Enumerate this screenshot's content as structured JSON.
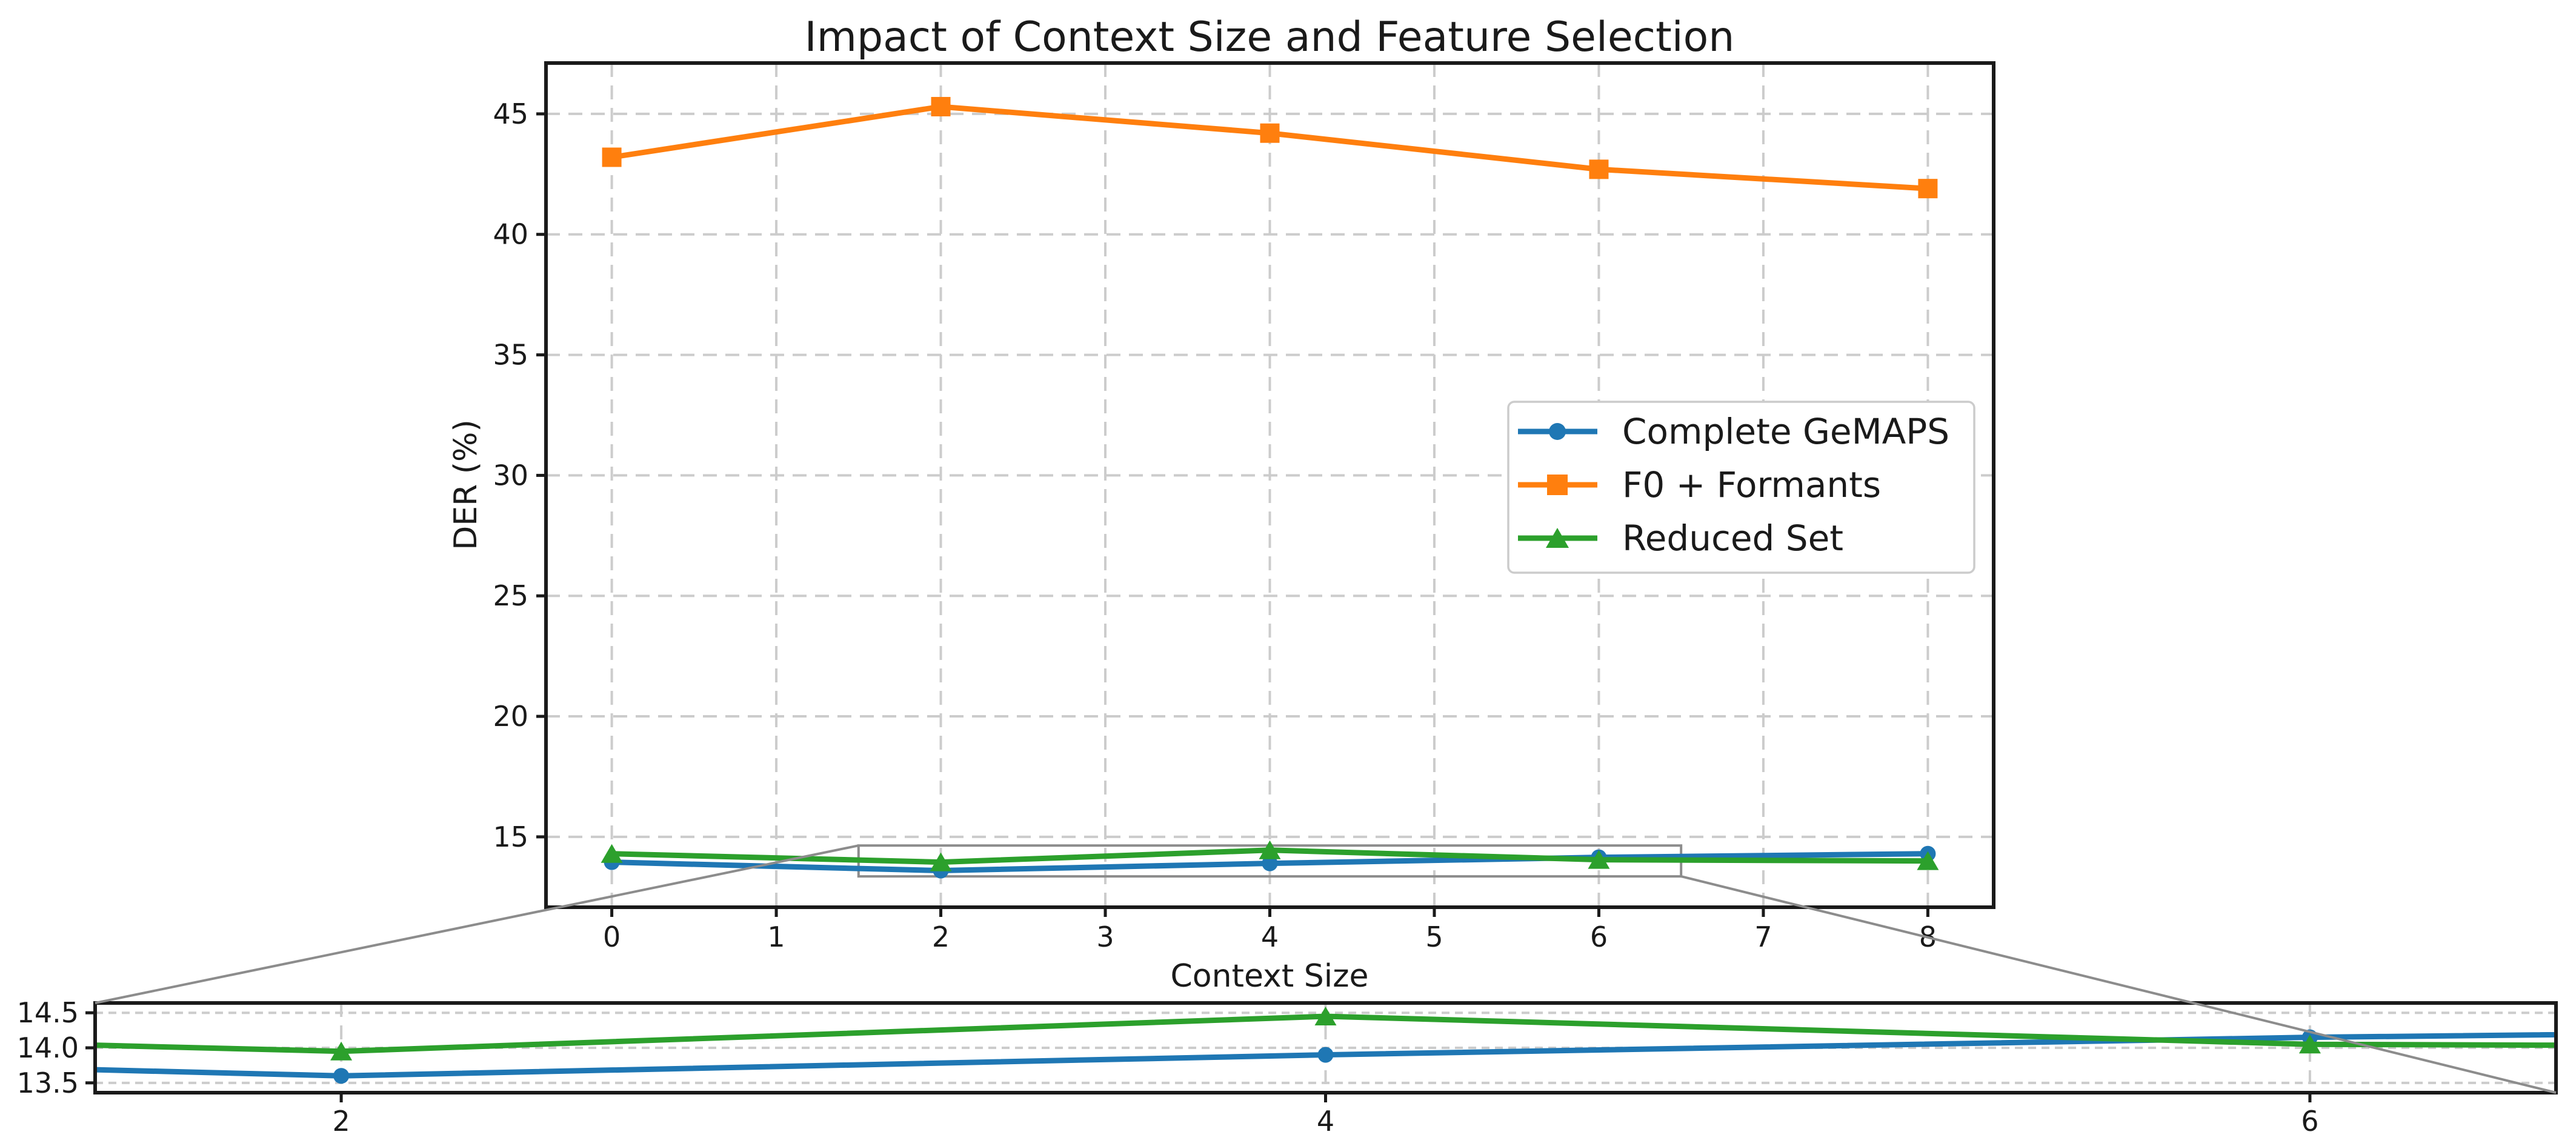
{
  "colors": {
    "background": "#ffffff",
    "grid": "#cccccc",
    "spine": "#1a1a1a",
    "text": "#1a1a1a",
    "connector": "#8c8c8c",
    "legend_border": "#cccccc"
  },
  "chart_data": [
    {
      "id": "main",
      "type": "line",
      "title": "Impact of Context Size and Feature Selection",
      "xlabel": "Context Size",
      "ylabel": "DER (%)",
      "x": [
        0,
        2,
        4,
        6,
        8
      ],
      "series": [
        {
          "name": "Complete GeMAPS",
          "color": "#1f77b4",
          "marker": "circle",
          "values": [
            13.95,
            13.6,
            13.9,
            14.15,
            14.3
          ]
        },
        {
          "name": "F0 + Formants",
          "color": "#ff7f0e",
          "marker": "square",
          "values": [
            43.2,
            45.3,
            44.2,
            42.7,
            41.9
          ]
        },
        {
          "name": "Reduced Set",
          "color": "#2ca02c",
          "marker": "triangle",
          "values": [
            14.3,
            13.95,
            14.45,
            14.05,
            14.0
          ]
        }
      ],
      "xlim": [
        -0.4,
        8.4
      ],
      "ylim": [
        12.08,
        47.11
      ],
      "xticks": [
        "0",
        "1",
        "2",
        "3",
        "4",
        "5",
        "6",
        "7",
        "8"
      ],
      "xtick_values": [
        0,
        1,
        2,
        3,
        4,
        5,
        6,
        7,
        8
      ],
      "yticks": [
        "15",
        "20",
        "25",
        "30",
        "35",
        "40",
        "45"
      ],
      "ytick_values": [
        15,
        20,
        25,
        30,
        35,
        40,
        45
      ],
      "grid": true,
      "legend": {
        "position": "middle-right",
        "entries": [
          "Complete GeMAPS",
          "F0 + Formants",
          "Reduced Set"
        ]
      }
    },
    {
      "id": "inset-zoom",
      "type": "line",
      "x": [
        0,
        2,
        4,
        6,
        8
      ],
      "series_ref": [
        0,
        2
      ],
      "xlim": [
        1.5,
        6.5
      ],
      "ylim": [
        13.36,
        14.64
      ],
      "xticks": [
        "2",
        "4",
        "6"
      ],
      "xtick_values": [
        2,
        4,
        6
      ],
      "yticks": [
        "13.5",
        "14.0",
        "14.5"
      ],
      "ytick_values": [
        13.5,
        14.0,
        14.5
      ],
      "grid": true
    }
  ],
  "zoom_indicator": {
    "x_range": [
      1.5,
      6.5
    ],
    "y_range": [
      13.36,
      14.64
    ]
  }
}
